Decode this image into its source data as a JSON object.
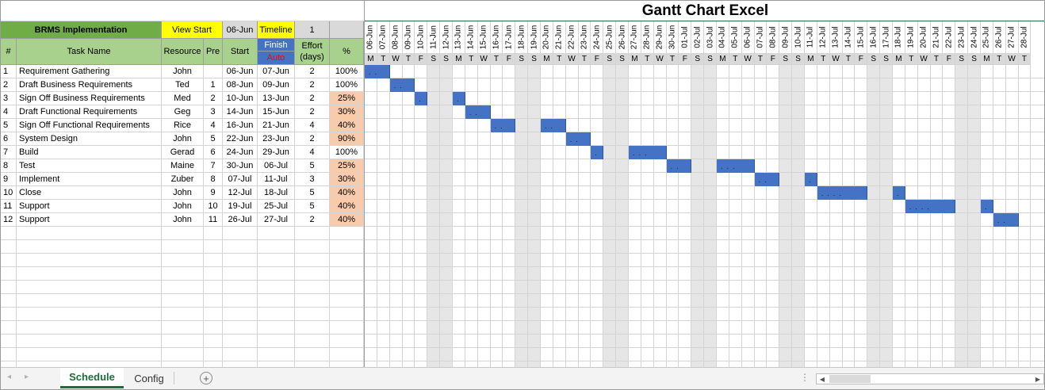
{
  "title": "Gantt Chart Excel",
  "header": {
    "project": "BRMS Implementation",
    "view_start_label": "View Start",
    "view_start_value": "06-Jun",
    "timeline_label": "Timeline",
    "timeline_value": "1",
    "finish_label": "Finish",
    "auto_label": "Auto"
  },
  "columns": {
    "num": "#",
    "task": "Task Name",
    "resource": "Resource",
    "pre": "Pre",
    "start": "Start",
    "effort": "Effort (days)",
    "pct": "%"
  },
  "tasks": [
    {
      "n": "1",
      "name": "Requirement Gathering",
      "resource": "John",
      "pre": "",
      "start": "06-Jun",
      "finish": "07-Jun",
      "effort": "2",
      "pct": "100%",
      "highlight": false,
      "segments": [
        [
          0,
          1
        ]
      ]
    },
    {
      "n": "2",
      "name": "Draft Business Requirements",
      "resource": "Ted",
      "pre": "1",
      "start": "08-Jun",
      "finish": "09-Jun",
      "effort": "2",
      "pct": "100%",
      "highlight": false,
      "segments": [
        [
          2,
          3
        ]
      ]
    },
    {
      "n": "3",
      "name": "Sign Off Business Requirements",
      "resource": "Med",
      "pre": "2",
      "start": "10-Jun",
      "finish": "13-Jun",
      "effort": "2",
      "pct": "25%",
      "highlight": true,
      "segments": [
        [
          4,
          4
        ],
        [
          7,
          7
        ]
      ]
    },
    {
      "n": "4",
      "name": "Draft Functional Requirements",
      "resource": "Geg",
      "pre": "3",
      "start": "14-Jun",
      "finish": "15-Jun",
      "effort": "2",
      "pct": "30%",
      "highlight": true,
      "segments": [
        [
          8,
          9
        ]
      ]
    },
    {
      "n": "5",
      "name": "Sign Off Functional Requirements",
      "resource": "Rice",
      "pre": "4",
      "start": "16-Jun",
      "finish": "21-Jun",
      "effort": "4",
      "pct": "40%",
      "highlight": true,
      "segments": [
        [
          10,
          11
        ],
        [
          14,
          15
        ]
      ]
    },
    {
      "n": "6",
      "name": "System Design",
      "resource": "John",
      "pre": "5",
      "start": "22-Jun",
      "finish": "23-Jun",
      "effort": "2",
      "pct": "90%",
      "highlight": true,
      "segments": [
        [
          16,
          17
        ]
      ]
    },
    {
      "n": "7",
      "name": "Build",
      "resource": "Gerad",
      "pre": "6",
      "start": "24-Jun",
      "finish": "29-Jun",
      "effort": "4",
      "pct": "100%",
      "highlight": false,
      "segments": [
        [
          18,
          18
        ],
        [
          21,
          23
        ]
      ]
    },
    {
      "n": "8",
      "name": "Test",
      "resource": "Maine",
      "pre": "7",
      "start": "30-Jun",
      "finish": "06-Jul",
      "effort": "5",
      "pct": "25%",
      "highlight": true,
      "segments": [
        [
          24,
          25
        ],
        [
          28,
          30
        ]
      ]
    },
    {
      "n": "9",
      "name": "Implement",
      "resource": "Zuber",
      "pre": "8",
      "start": "07-Jul",
      "finish": "11-Jul",
      "effort": "3",
      "pct": "30%",
      "highlight": true,
      "segments": [
        [
          31,
          32
        ],
        [
          35,
          35
        ]
      ]
    },
    {
      "n": "10",
      "name": "Close",
      "resource": "John",
      "pre": "9",
      "start": "12-Jul",
      "finish": "18-Jul",
      "effort": "5",
      "pct": "40%",
      "highlight": true,
      "segments": [
        [
          36,
          39
        ],
        [
          42,
          42
        ]
      ]
    },
    {
      "n": "11",
      "name": "Support",
      "resource": "John",
      "pre": "10",
      "start": "19-Jul",
      "finish": "25-Jul",
      "effort": "5",
      "pct": "40%",
      "highlight": true,
      "segments": [
        [
          43,
          46
        ],
        [
          49,
          49
        ]
      ]
    },
    {
      "n": "12",
      "name": "Support",
      "resource": "John",
      "pre": "11",
      "start": "26-Jul",
      "finish": "27-Jul",
      "effort": "2",
      "pct": "40%",
      "highlight": true,
      "segments": [
        [
          50,
          51
        ]
      ]
    }
  ],
  "timeline": {
    "dates": [
      "06-Jun",
      "07-Jun",
      "08-Jun",
      "09-Jun",
      "10-Jun",
      "11-Jun",
      "12-Jun",
      "13-Jun",
      "14-Jun",
      "15-Jun",
      "16-Jun",
      "17-Jun",
      "18-Jun",
      "19-Jun",
      "20-Jun",
      "21-Jun",
      "22-Jun",
      "23-Jun",
      "24-Jun",
      "25-Jun",
      "26-Jun",
      "27-Jun",
      "28-Jun",
      "29-Jun",
      "30-Jun",
      "01-Jul",
      "02-Jul",
      "03-Jul",
      "04-Jul",
      "05-Jul",
      "06-Jul",
      "07-Jul",
      "08-Jul",
      "09-Jul",
      "10-Jul",
      "11-Jul",
      "12-Jul",
      "13-Jul",
      "14-Jul",
      "15-Jul",
      "16-Jul",
      "17-Jul",
      "18-Jul",
      "19-Jul",
      "20-Jul",
      "21-Jul",
      "22-Jul",
      "23-Jul",
      "24-Jul",
      "25-Jul",
      "26-Jul",
      "27-Jul",
      "28-Jul"
    ],
    "days": [
      "M",
      "T",
      "W",
      "T",
      "F",
      "S",
      "S",
      "M",
      "T",
      "W",
      "T",
      "F",
      "S",
      "S",
      "M",
      "T",
      "W",
      "T",
      "F",
      "S",
      "S",
      "M",
      "T",
      "W",
      "T",
      "F",
      "S",
      "S",
      "M",
      "T",
      "W",
      "T",
      "F",
      "S",
      "S",
      "M",
      "T",
      "W",
      "T",
      "F",
      "S",
      "S",
      "M",
      "T",
      "W",
      "T",
      "F",
      "S",
      "S",
      "M",
      "T",
      "W",
      "T"
    ]
  },
  "tabs": [
    {
      "label": "Schedule",
      "active": true
    },
    {
      "label": "Config",
      "active": false
    }
  ],
  "colors": {
    "project_header": "#70ad47",
    "column_header": "#a9d18e",
    "yellow": "#ffff00",
    "blue_header": "#4472c4",
    "auto_red": "#ff0000",
    "pct_highlight": "#f8cbad",
    "bar": "#4472c4",
    "weekend": "#e6e6e6",
    "gray_header": "#d9d9d9"
  }
}
